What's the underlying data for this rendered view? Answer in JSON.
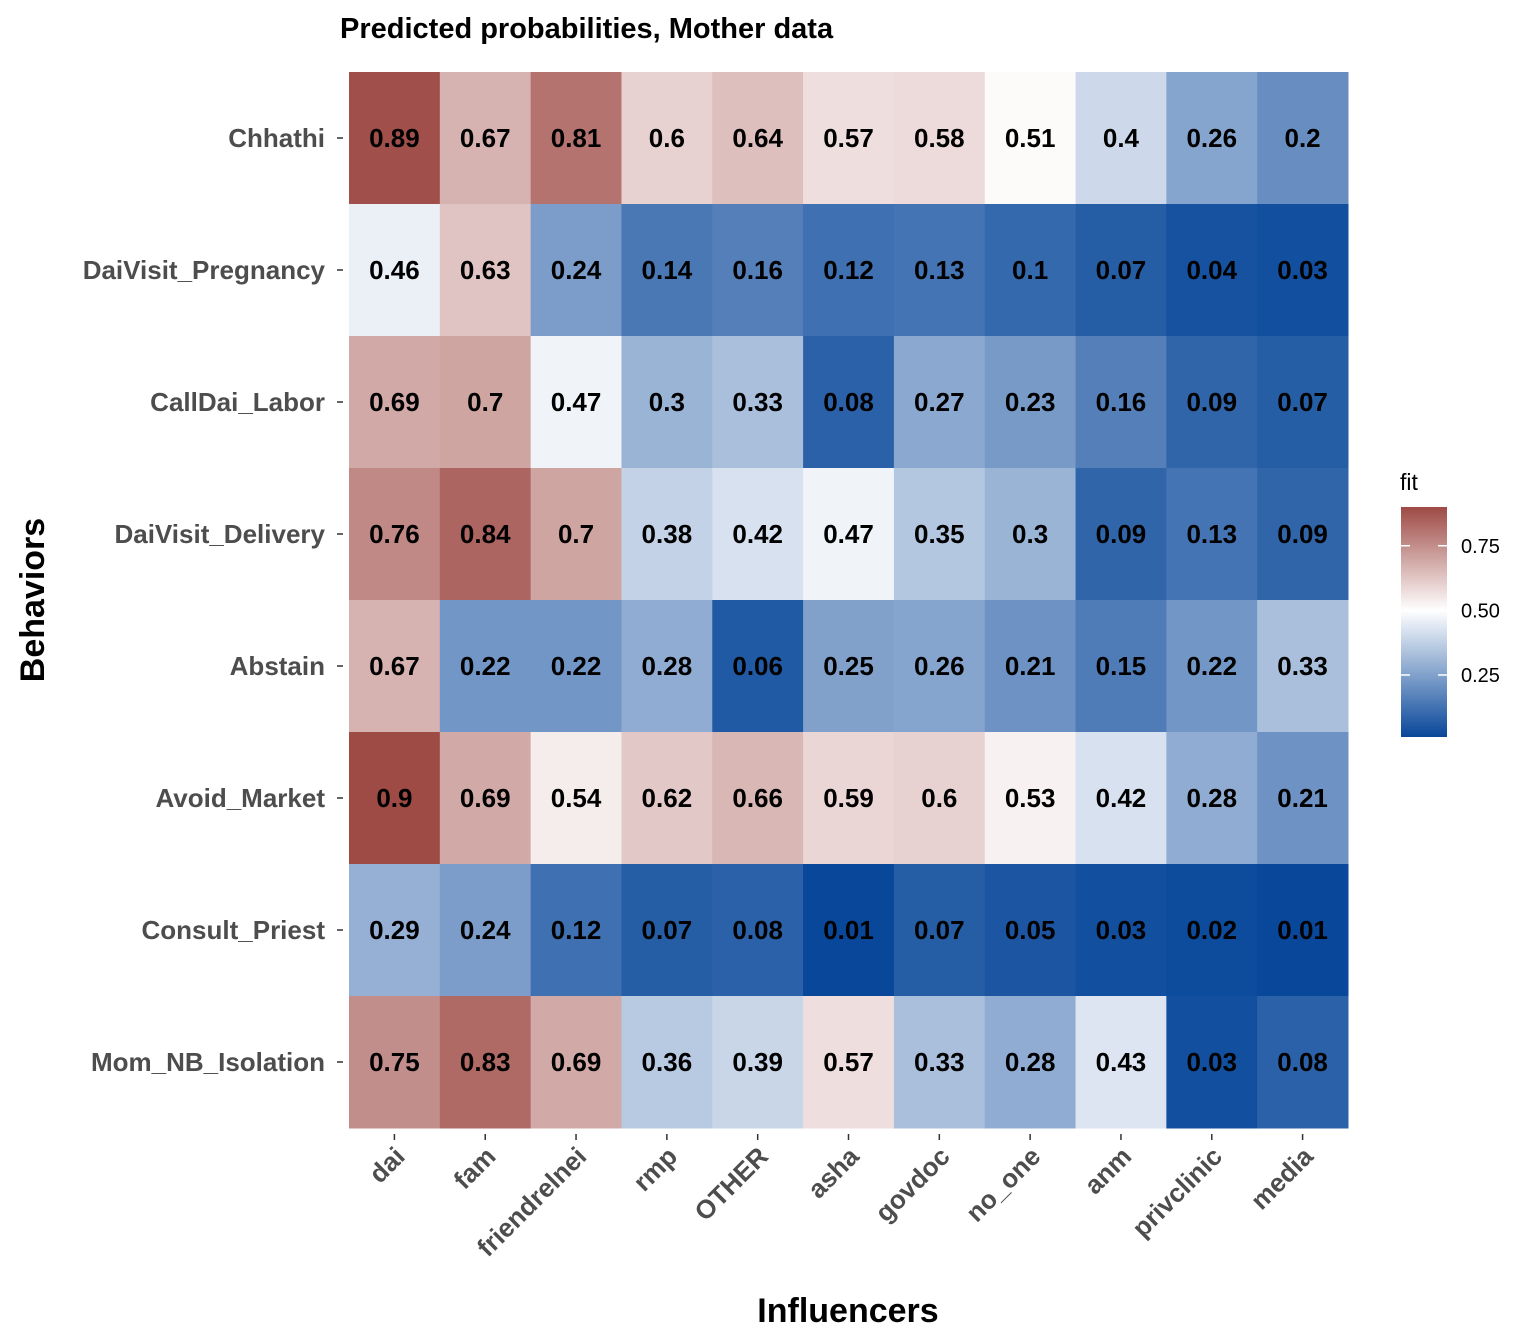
{
  "chart_data": {
    "type": "heatmap",
    "title": "Predicted probabilities, Mother data",
    "xlabel": "Influencers",
    "ylabel": "Behaviors",
    "x_categories": [
      "dai",
      "fam",
      "friendrelnei",
      "rmp",
      "OTHER",
      "asha",
      "govdoc",
      "no_one",
      "anm",
      "privclinic",
      "media"
    ],
    "y_categories": [
      "Chhathi",
      "DaiVisit_Pregnancy",
      "CallDai_Labor",
      "DaiVisit_Delivery",
      "Abstain",
      "Avoid_Market",
      "Consult_Priest",
      "Mom_NB_Isolation"
    ],
    "values": [
      [
        0.89,
        0.67,
        0.81,
        0.6,
        0.64,
        0.57,
        0.58,
        0.51,
        0.4,
        0.26,
        0.2
      ],
      [
        0.46,
        0.63,
        0.24,
        0.14,
        0.16,
        0.12,
        0.13,
        0.1,
        0.07,
        0.04,
        0.03
      ],
      [
        0.69,
        0.7,
        0.47,
        0.3,
        0.33,
        0.08,
        0.27,
        0.23,
        0.16,
        0.09,
        0.07
      ],
      [
        0.76,
        0.84,
        0.7,
        0.38,
        0.42,
        0.47,
        0.35,
        0.3,
        0.09,
        0.13,
        0.09
      ],
      [
        0.67,
        0.22,
        0.22,
        0.28,
        0.06,
        0.25,
        0.26,
        0.21,
        0.15,
        0.22,
        0.33
      ],
      [
        0.9,
        0.69,
        0.54,
        0.62,
        0.66,
        0.59,
        0.6,
        0.53,
        0.42,
        0.28,
        0.21
      ],
      [
        0.29,
        0.24,
        0.12,
        0.07,
        0.08,
        0.01,
        0.07,
        0.05,
        0.03,
        0.02,
        0.01
      ],
      [
        0.75,
        0.83,
        0.69,
        0.36,
        0.39,
        0.57,
        0.33,
        0.28,
        0.43,
        0.03,
        0.08
      ]
    ],
    "legend": {
      "title": "fit",
      "position": "right",
      "ticks": [
        "0.75",
        "0.50",
        "0.25"
      ],
      "tick_values": [
        0.75,
        0.5,
        0.25
      ],
      "range": [
        0.01,
        0.9
      ],
      "midpoint": 0.5
    },
    "colors": {
      "low": "#08479a",
      "mid": "#ffffff",
      "high": "#9e4a45"
    },
    "grid": false
  }
}
